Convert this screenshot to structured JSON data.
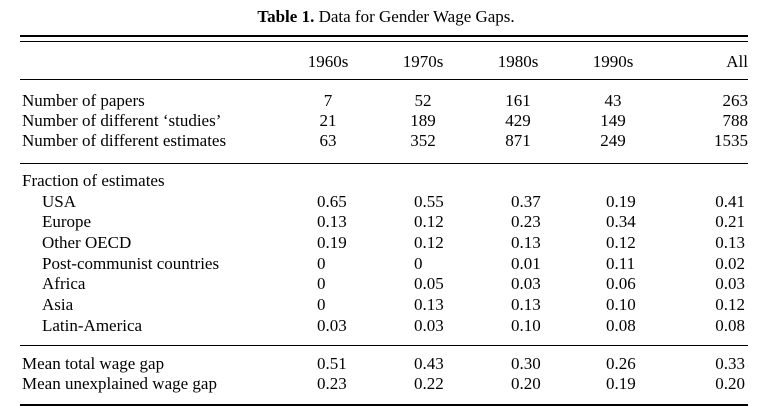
{
  "caption": {
    "label": "Table 1.",
    "title": "Data for Gender Wage Gaps."
  },
  "columns": [
    "1960s",
    "1970s",
    "1980s",
    "1990s",
    "All"
  ],
  "section1": [
    {
      "label": "Number of papers",
      "values": [
        "7",
        "52",
        "161",
        "43",
        "263"
      ]
    },
    {
      "label": "Number of different ‘studies’",
      "values": [
        "21",
        "189",
        "429",
        "149",
        "788"
      ]
    },
    {
      "label": "Number of different estimates",
      "values": [
        "63",
        "352",
        "871",
        "249",
        "1535"
      ]
    }
  ],
  "section2": {
    "heading": "Fraction of estimates",
    "rows": [
      {
        "label": "USA",
        "values": [
          "0.65",
          "0.55",
          "0.37",
          "0.19",
          "0.41"
        ]
      },
      {
        "label": "Europe",
        "values": [
          "0.13",
          "0.12",
          "0.23",
          "0.34",
          "0.21"
        ]
      },
      {
        "label": "Other OECD",
        "values": [
          "0.19",
          "0.12",
          "0.13",
          "0.12",
          "0.13"
        ]
      },
      {
        "label": "Post-communist countries",
        "values": [
          "0",
          "0",
          "0.01",
          "0.11",
          "0.02"
        ]
      },
      {
        "label": "Africa",
        "values": [
          "0",
          "0.05",
          "0.03",
          "0.06",
          "0.03"
        ]
      },
      {
        "label": "Asia",
        "values": [
          "0",
          "0.13",
          "0.13",
          "0.10",
          "0.12"
        ]
      },
      {
        "label": "Latin-America",
        "values": [
          "0.03",
          "0.03",
          "0.10",
          "0.08",
          "0.08"
        ]
      }
    ]
  },
  "section3": [
    {
      "label": "Mean total wage gap",
      "values": [
        "0.51",
        "0.43",
        "0.30",
        "0.26",
        "0.33"
      ]
    },
    {
      "label": "Mean unexplained wage gap",
      "values": [
        "0.23",
        "0.22",
        "0.20",
        "0.19",
        "0.20"
      ]
    }
  ]
}
